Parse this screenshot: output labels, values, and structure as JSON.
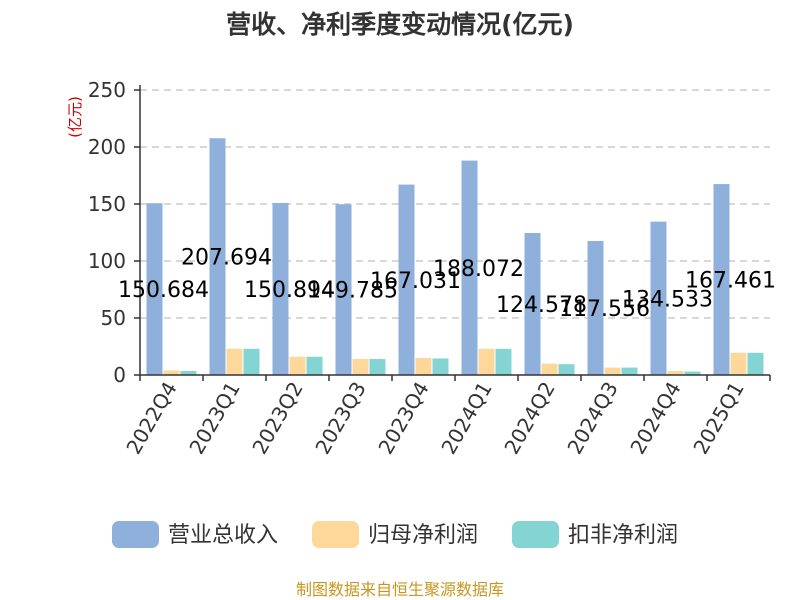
{
  "chart_data": {
    "type": "bar",
    "title": "营收、净利季度变动情况(亿元)",
    "ylabel": "(亿元)",
    "xlabel": "",
    "ylim": [
      0,
      250
    ],
    "yticks": [
      0,
      50,
      100,
      150,
      200,
      250
    ],
    "grid": true,
    "legend_position": "bottom",
    "categories": [
      "2022Q4",
      "2023Q1",
      "2023Q2",
      "2023Q3",
      "2023Q4",
      "2024Q1",
      "2024Q2",
      "2024Q3",
      "2024Q4",
      "2025Q1"
    ],
    "series": [
      {
        "name": "营业总收入",
        "color": "#8eb0db",
        "values": [
          150.684,
          207.694,
          150.894,
          149.785,
          167.031,
          188.072,
          124.578,
          117.556,
          134.533,
          167.461
        ],
        "labels": [
          "150.684",
          "207.694",
          "150.894",
          "149.785",
          "167.031",
          "188.072",
          "124.578",
          "117.556",
          "134.533",
          "167.461"
        ]
      },
      {
        "name": "归母净利润",
        "color": "#fdd89a",
        "values": [
          4,
          23,
          16,
          14,
          15,
          23,
          10,
          6.5,
          3.5,
          19.5
        ]
      },
      {
        "name": "扣非净利润",
        "color": "#84d4d4",
        "values": [
          3.5,
          23,
          16,
          14,
          14.5,
          23,
          9.5,
          6.5,
          3,
          19.5
        ]
      }
    ]
  },
  "source": "制图数据来自恒生聚源数据库"
}
